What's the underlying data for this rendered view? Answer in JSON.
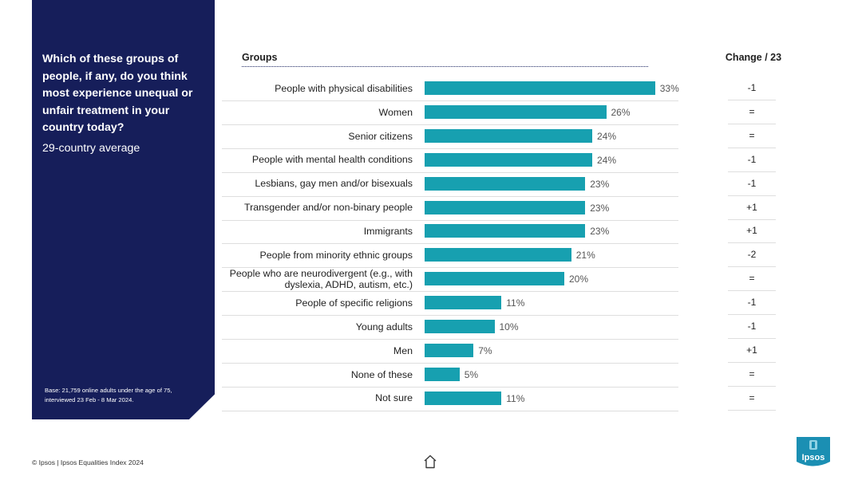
{
  "panel": {
    "question": "Which of these groups of people, if any, do you think most experience unequal or unfair treatment in your country today?",
    "subtitle": "29-country average",
    "base": "Base: 21,759 online adults under the age of 75, interviewed 23 Feb - 8 Mar 2024."
  },
  "header": {
    "groups": "Groups",
    "change": "Change / 23"
  },
  "footer": {
    "copyright": "© Ipsos | Ipsos Equalities Index 2024",
    "logo_text": "Ipsos"
  },
  "colors": {
    "panel": "#161e5a",
    "bar": "#17a0b0",
    "logo": "#1b8fb3"
  },
  "chart_data": {
    "type": "bar",
    "orientation": "horizontal",
    "title": "Which of these groups of people, if any, do you think most experience unequal or unfair treatment in your country today?",
    "xlim": [
      0,
      40
    ],
    "categories": [
      "People with physical disabilities",
      "Women",
      "Senior citizens",
      "People with mental health conditions",
      "Lesbians, gay men and/or bisexuals",
      "Transgender and/or non-binary people",
      "Immigrants",
      "People from minority ethnic groups",
      "People who are neurodivergent (e.g., with dyslexia, ADHD, autism, etc.)",
      "People of specific religions",
      "Young adults",
      "Men",
      "None of these",
      "Not sure"
    ],
    "values": [
      33,
      26,
      24,
      24,
      23,
      23,
      23,
      21,
      20,
      11,
      10,
      7,
      5,
      11
    ],
    "value_labels": [
      "33%",
      "26%",
      "24%",
      "24%",
      "23%",
      "23%",
      "23%",
      "21%",
      "20%",
      "11%",
      "10%",
      "7%",
      "5%",
      "11%"
    ],
    "change_labels": [
      "-1",
      "=",
      "=",
      "-1",
      "-1",
      "+1",
      "+1",
      "-2",
      "=",
      "-1",
      "-1",
      "+1",
      "=",
      "="
    ]
  }
}
